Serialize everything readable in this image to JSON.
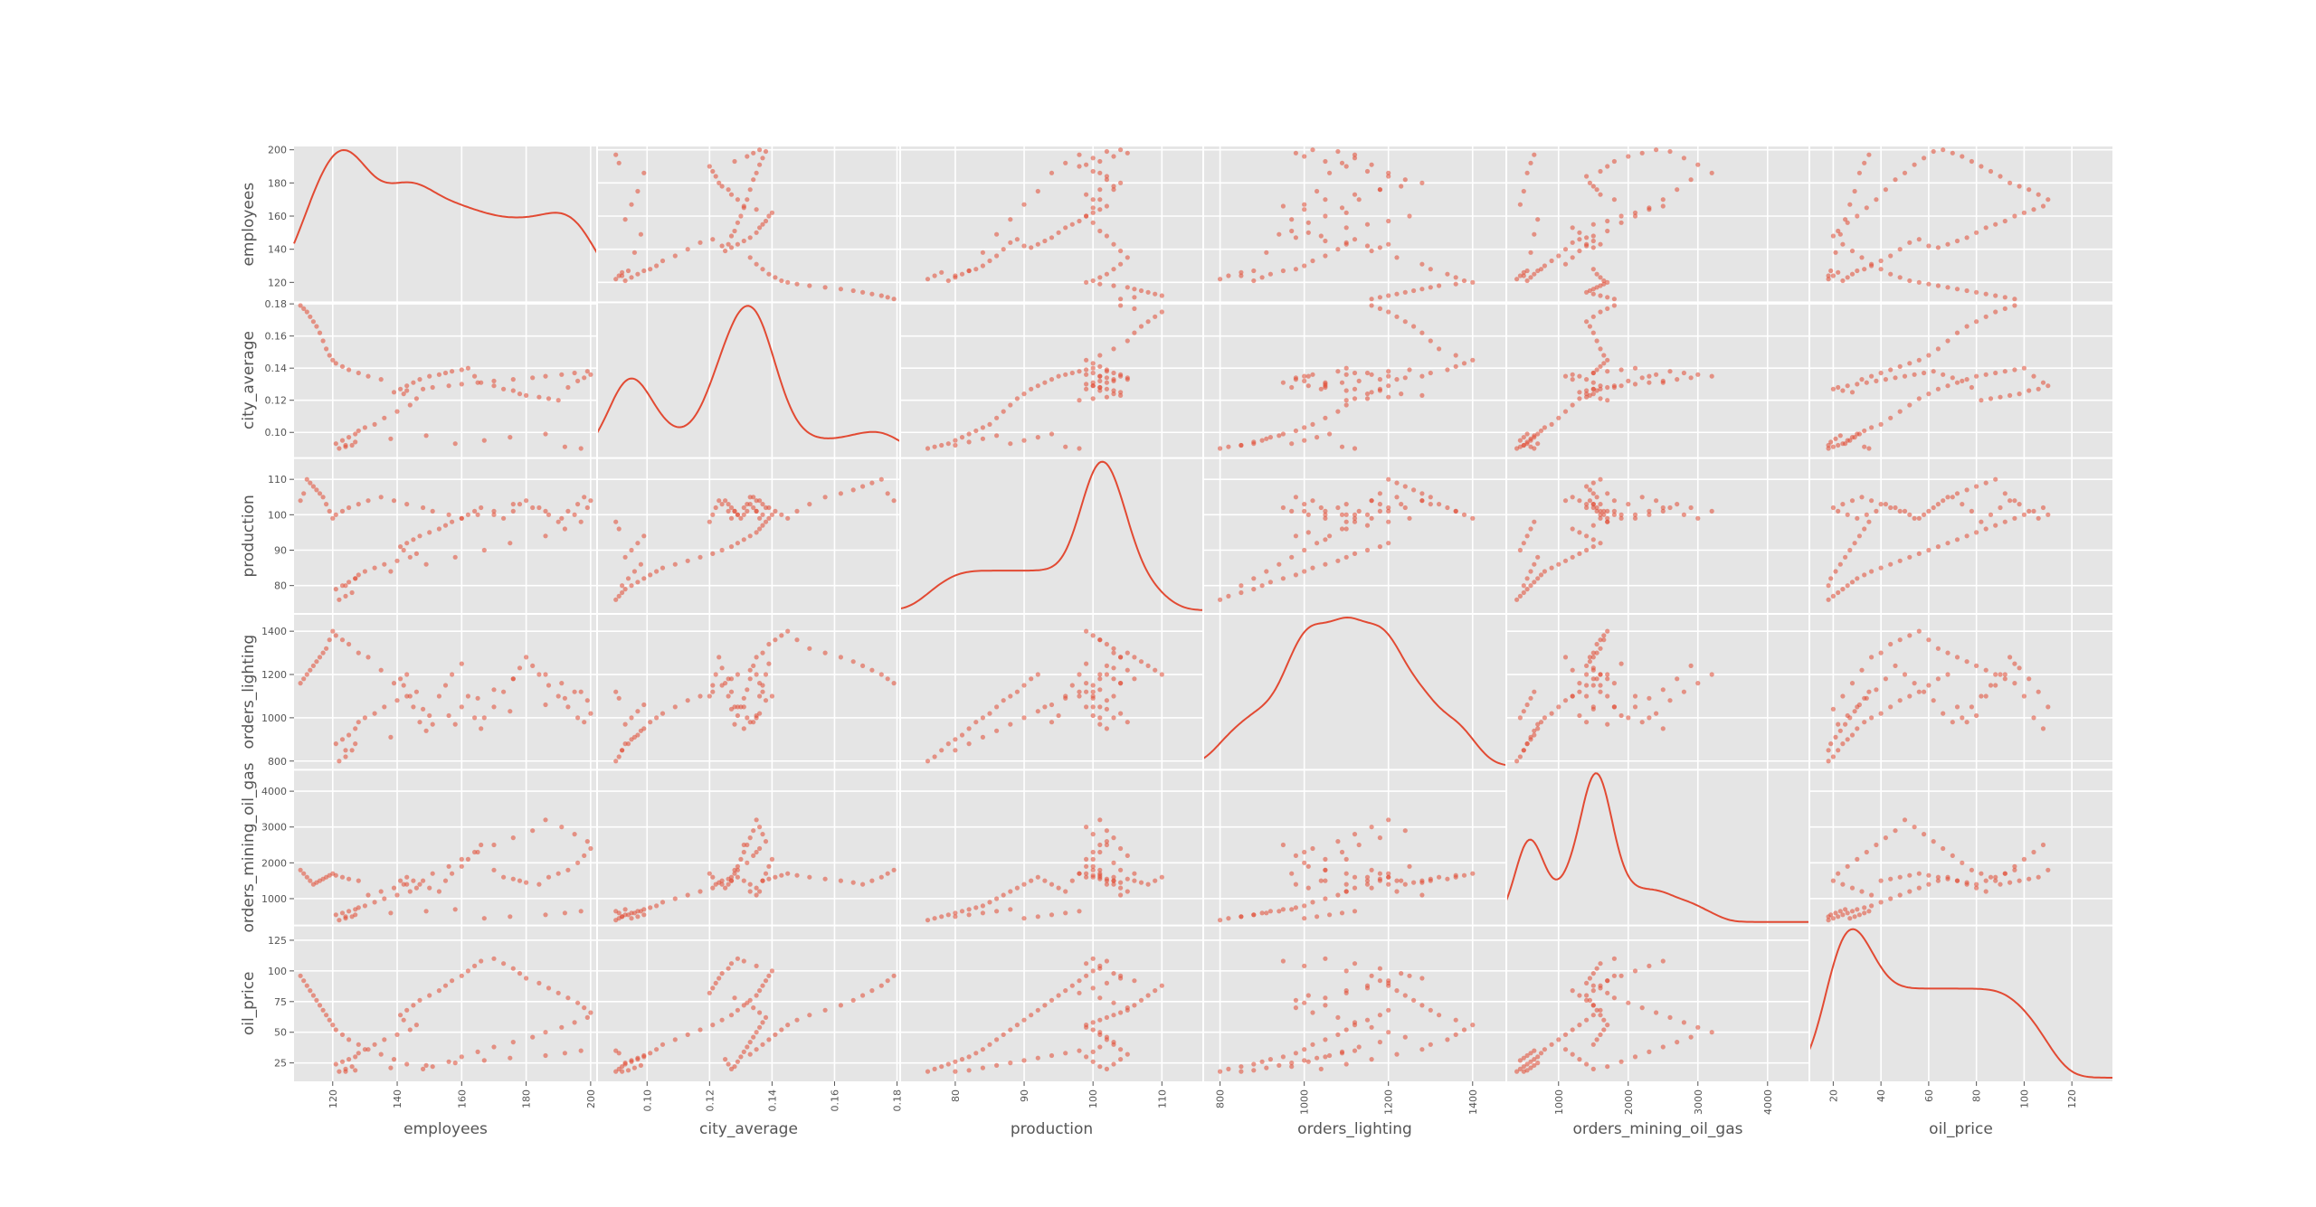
{
  "chart_data": {
    "type": "scatter",
    "subtype": "scatter-matrix",
    "diagonal": "kde",
    "grid": true,
    "point_color": "#e24a33",
    "line_color": "#e24a33",
    "panel_background": "#e5e5e5",
    "variables": [
      {
        "name": "employees",
        "label": "employees",
        "range": [
          108,
          202
        ],
        "y_ticks": [
          120,
          140,
          160,
          180,
          200
        ],
        "x_ticks": [
          120,
          140,
          160,
          180,
          200
        ],
        "y_tick_labels": [
          "120",
          "140",
          "160",
          "180",
          "200"
        ],
        "x_tick_labels": [
          "120",
          "140",
          "160",
          "180",
          "200"
        ]
      },
      {
        "name": "city_average",
        "label": "city_average",
        "range": [
          0.084,
          0.181
        ],
        "y_ticks": [
          0.1,
          0.12,
          0.14,
          0.16,
          0.18
        ],
        "x_ticks": [
          0.1,
          0.12,
          0.14,
          0.16,
          0.18
        ],
        "y_tick_labels": [
          "0.10",
          "0.12",
          "0.14",
          "0.16",
          "0.18"
        ],
        "x_tick_labels": [
          "0.10",
          "0.12",
          "0.14",
          "0.16",
          "0.18"
        ]
      },
      {
        "name": "production",
        "label": "production",
        "range": [
          72,
          116
        ],
        "y_ticks": [
          80,
          90,
          100,
          110
        ],
        "x_ticks": [
          80,
          90,
          100,
          110
        ],
        "y_tick_labels": [
          "80",
          "90",
          "100",
          "110"
        ],
        "x_tick_labels": [
          "80",
          "90",
          "100",
          "110"
        ]
      },
      {
        "name": "orders_lighting",
        "label": "orders_lighting",
        "range": [
          760,
          1480
        ],
        "y_ticks": [
          800,
          1000,
          1200,
          1400
        ],
        "x_ticks": [
          800,
          1000,
          1200,
          1400
        ],
        "y_tick_labels": [
          "800",
          "1000",
          "1200",
          "1400"
        ],
        "x_tick_labels": [
          "800",
          "1000",
          "1200",
          "1400"
        ]
      },
      {
        "name": "orders_mining_oil_gas",
        "label": "orders_mining_oil_gas",
        "range": [
          250,
          4600
        ],
        "y_ticks": [
          1000,
          2000,
          3000,
          4000
        ],
        "x_ticks": [
          1000,
          2000,
          3000,
          4000
        ],
        "y_tick_labels": [
          "1000",
          "2000",
          "3000",
          "4000"
        ],
        "x_tick_labels": [
          "1000",
          "2000",
          "3000",
          "4000"
        ]
      },
      {
        "name": "oil_price",
        "label": "oil_price",
        "range": [
          10,
          137
        ],
        "y_ticks": [
          25,
          50,
          75,
          100,
          125
        ],
        "x_ticks": [
          20,
          40,
          60,
          80,
          100,
          120
        ],
        "y_tick_labels": [
          "25",
          "50",
          "75",
          "100",
          "125"
        ],
        "x_tick_labels": [
          "20",
          "40",
          "60",
          "80",
          "100",
          "120"
        ]
      }
    ],
    "series": [
      {
        "name": "employees",
        "values": [
          122,
          124,
          126,
          121,
          123,
          125,
          127,
          128,
          130,
          133,
          136,
          140,
          144,
          146,
          142,
          141,
          143,
          145,
          147,
          150,
          153,
          155,
          157,
          160,
          162,
          164,
          166,
          170,
          173,
          176,
          178,
          180,
          184,
          187,
          190,
          193,
          196,
          198,
          200,
          199,
          195,
          191,
          186,
          182,
          176,
          170,
          165,
          160,
          156,
          151,
          148,
          143,
          139,
          135,
          131,
          128,
          125,
          123,
          121,
          120,
          119,
          118,
          117,
          116,
          115,
          114,
          113,
          112,
          111,
          110,
          124,
          127,
          138,
          149,
          158,
          167,
          175,
          186,
          192,
          197
        ]
      },
      {
        "name": "city_average",
        "values": [
          0.09,
          0.091,
          0.092,
          0.093,
          0.095,
          0.097,
          0.099,
          0.101,
          0.103,
          0.105,
          0.109,
          0.113,
          0.117,
          0.121,
          0.124,
          0.127,
          0.129,
          0.131,
          0.133,
          0.135,
          0.136,
          0.137,
          0.138,
          0.139,
          0.14,
          0.135,
          0.131,
          0.129,
          0.127,
          0.126,
          0.124,
          0.123,
          0.122,
          0.121,
          0.12,
          0.128,
          0.132,
          0.134,
          0.136,
          0.138,
          0.137,
          0.136,
          0.135,
          0.134,
          0.133,
          0.132,
          0.131,
          0.13,
          0.129,
          0.128,
          0.127,
          0.126,
          0.125,
          0.133,
          0.135,
          0.137,
          0.139,
          0.141,
          0.143,
          0.145,
          0.148,
          0.152,
          0.157,
          0.162,
          0.166,
          0.169,
          0.172,
          0.175,
          0.177,
          0.179,
          0.092,
          0.094,
          0.096,
          0.098,
          0.093,
          0.095,
          0.097,
          0.099,
          0.091,
          0.09
        ]
      },
      {
        "name": "production",
        "values": [
          76,
          77,
          78,
          79,
          80,
          81,
          82,
          83,
          84,
          85,
          86,
          87,
          88,
          89,
          90,
          91,
          92,
          93,
          94,
          95,
          96,
          97,
          98,
          99,
          100,
          101,
          102,
          100,
          99,
          101,
          103,
          104,
          102,
          100,
          98,
          101,
          103,
          105,
          104,
          102,
          100,
          99,
          101,
          102,
          103,
          101,
          100,
          99,
          100,
          101,
          102,
          103,
          104,
          105,
          104,
          103,
          102,
          101,
          100,
          99,
          101,
          103,
          105,
          106,
          107,
          108,
          109,
          110,
          106,
          104,
          80,
          82,
          84,
          86,
          88,
          90,
          92,
          94,
          96,
          98
        ]
      },
      {
        "name": "orders_lighting",
        "values": [
          800,
          820,
          850,
          880,
          900,
          920,
          950,
          980,
          1000,
          1020,
          1050,
          1080,
          1100,
          1120,
          1150,
          1180,
          1200,
          1050,
          980,
          1010,
          1100,
          1150,
          1200,
          1250,
          1100,
          1000,
          950,
          1050,
          1120,
          1180,
          1230,
          1280,
          1200,
          1150,
          1100,
          1050,
          1000,
          980,
          1020,
          1080,
          1120,
          1160,
          1200,
          1240,
          1180,
          1130,
          1090,
          1050,
          1010,
          970,
          1040,
          1100,
          1160,
          1220,
          1280,
          1300,
          1340,
          1360,
          1380,
          1400,
          1360,
          1320,
          1300,
          1280,
          1260,
          1240,
          1220,
          1200,
          1180,
          1160,
          850,
          880,
          910,
          940,
          970,
          1000,
          1030,
          1060,
          1090,
          1120
        ]
      },
      {
        "name": "orders_mining_oil_gas",
        "values": [
          400,
          450,
          500,
          550,
          600,
          650,
          700,
          750,
          800,
          900,
          1000,
          1100,
          1200,
          1300,
          1400,
          1500,
          1600,
          1500,
          1400,
          1300,
          1200,
          1500,
          1700,
          1900,
          2100,
          2300,
          2500,
          1800,
          1600,
          1550,
          1500,
          1450,
          1400,
          1600,
          1700,
          1800,
          2000,
          2200,
          2400,
          2600,
          2800,
          3000,
          3200,
          2900,
          2700,
          2500,
          2300,
          2100,
          1900,
          1700,
          1500,
          1400,
          1300,
          1200,
          1100,
          1500,
          1550,
          1600,
          1650,
          1700,
          1650,
          1600,
          1550,
          1500,
          1450,
          1400,
          1500,
          1600,
          1700,
          1800,
          500,
          550,
          600,
          650,
          700,
          450,
          500,
          550,
          600,
          650
        ]
      },
      {
        "name": "oil_price",
        "values": [
          18,
          20,
          22,
          24,
          26,
          28,
          30,
          33,
          36,
          40,
          44,
          48,
          52,
          56,
          60,
          64,
          68,
          72,
          76,
          80,
          84,
          88,
          92,
          96,
          100,
          104,
          108,
          110,
          106,
          102,
          98,
          94,
          90,
          86,
          82,
          78,
          74,
          70,
          66,
          62,
          58,
          54,
          50,
          46,
          42,
          38,
          34,
          30,
          26,
          22,
          20,
          24,
          28,
          32,
          36,
          40,
          44,
          48,
          52,
          56,
          60,
          64,
          68,
          72,
          76,
          80,
          84,
          88,
          92,
          96,
          18,
          19,
          21,
          23,
          25,
          27,
          29,
          31,
          33,
          35
        ]
      }
    ]
  }
}
